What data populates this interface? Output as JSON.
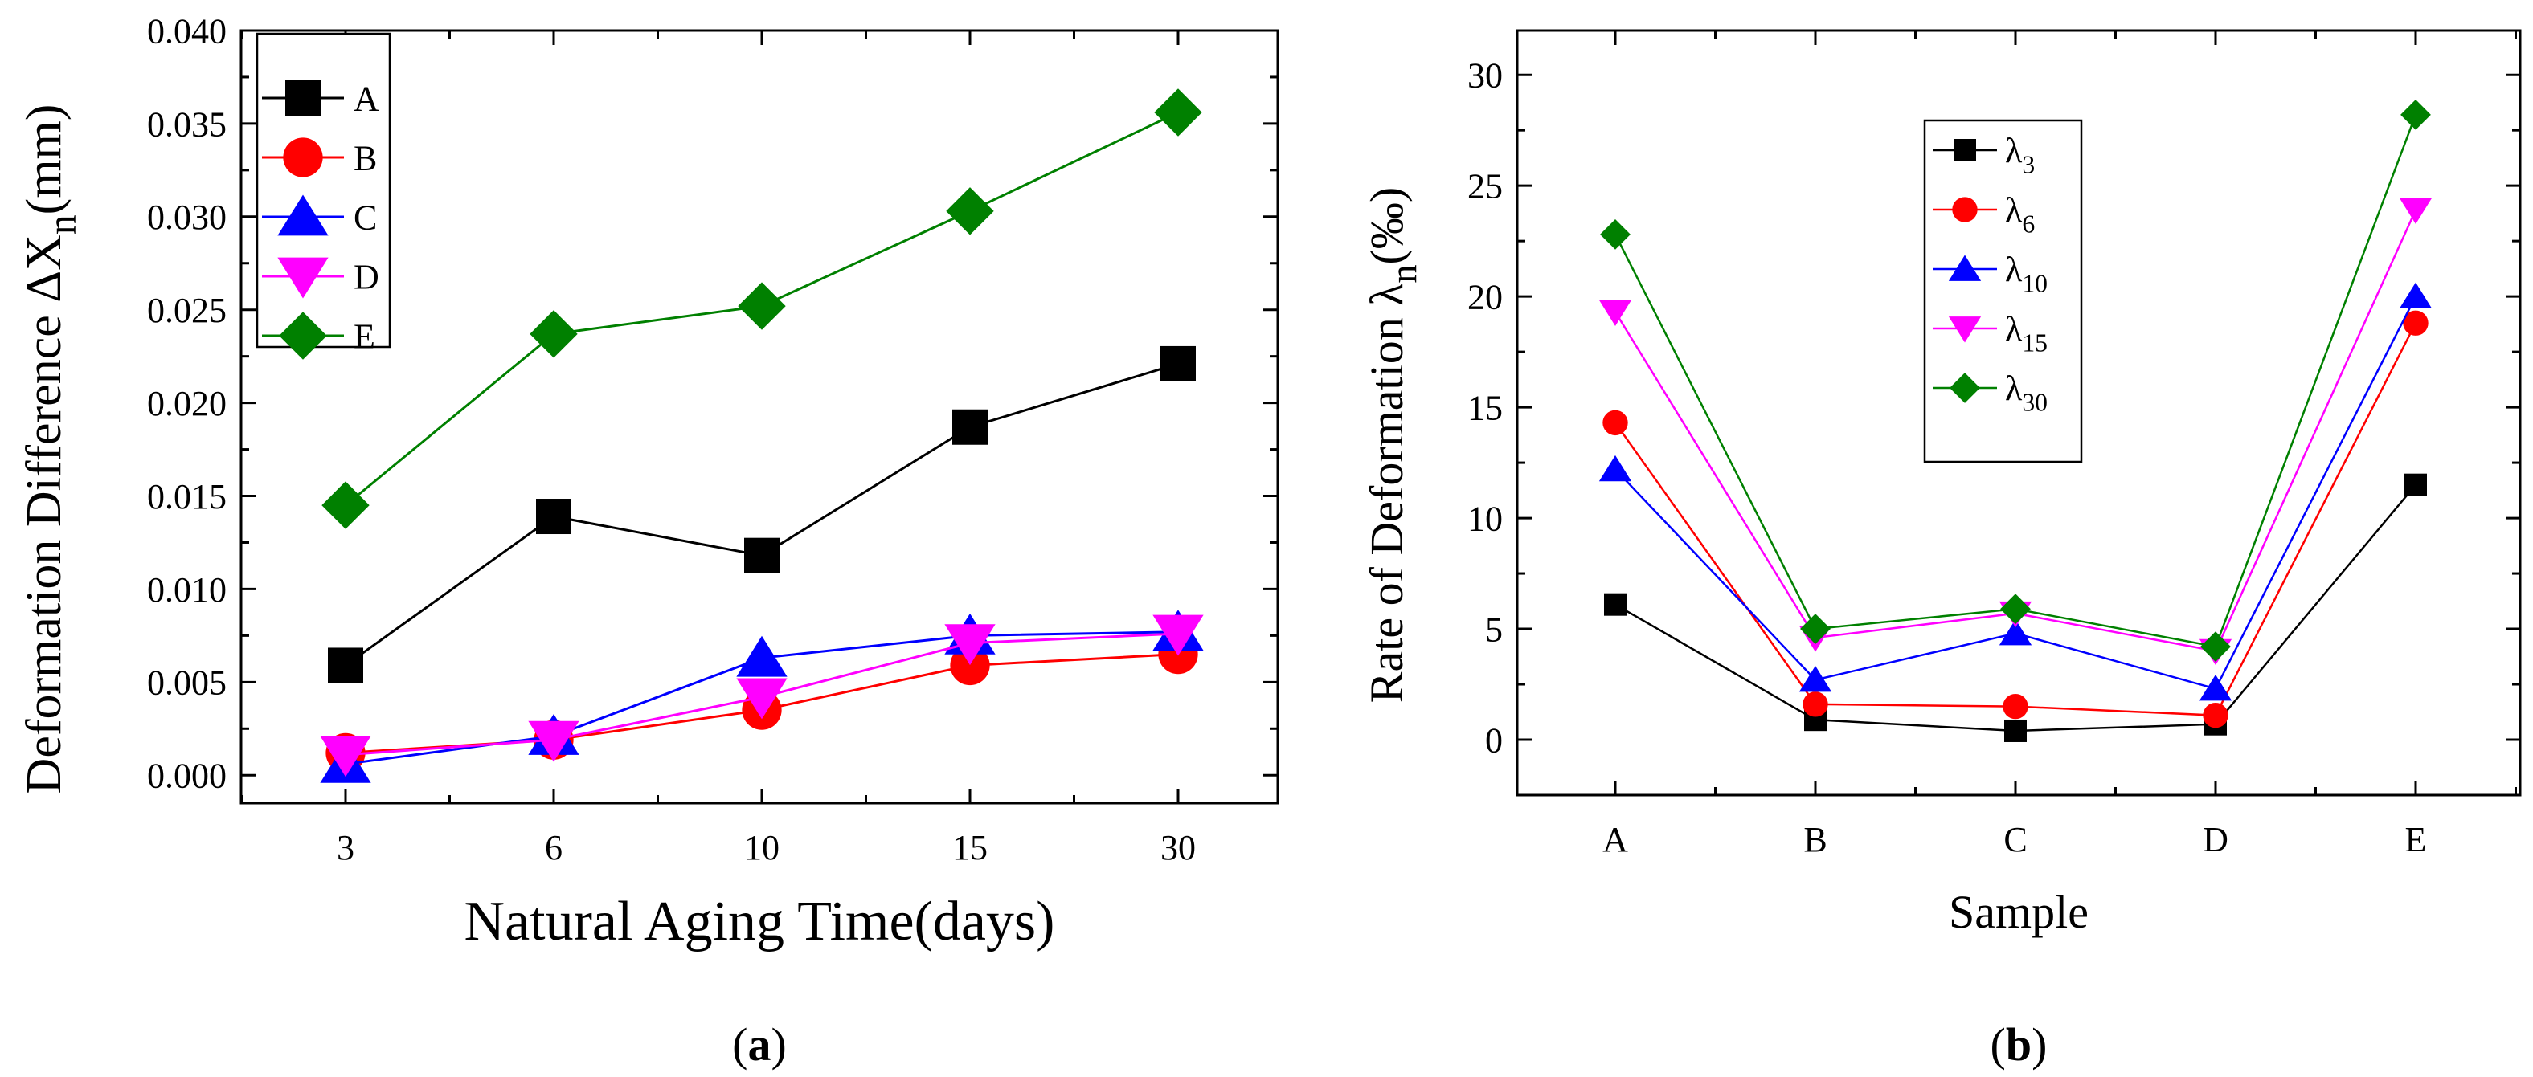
{
  "chart_data": [
    {
      "type": "line",
      "panel_label": "a",
      "title": "",
      "xlabel": "Natural Aging Time(days)",
      "ylabel": "Deformation Difference  ΔX",
      "ylabel_sub": "n",
      "ylabel_unit": "(mm)",
      "categories": [
        "3",
        "6",
        "10",
        "15",
        "30"
      ],
      "ylim": [
        -0.0015,
        0.04
      ],
      "yticks": [
        "0.000",
        "0.005",
        "0.010",
        "0.015",
        "0.020",
        "0.025",
        "0.030",
        "0.035",
        "0.040"
      ],
      "legend_position": "top-left",
      "grid": false,
      "series": [
        {
          "name": "A",
          "marker": "square",
          "color": "#000000",
          "values": [
            0.0059,
            0.0139,
            0.0118,
            0.0187,
            0.0221
          ]
        },
        {
          "name": "B",
          "marker": "circle",
          "color": "#ff0000",
          "values": [
            0.0012,
            0.0019,
            0.0035,
            0.0059,
            0.0065
          ]
        },
        {
          "name": "C",
          "marker": "triangle-up",
          "color": "#0000ff",
          "values": [
            0.0006,
            0.0021,
            0.0063,
            0.0075,
            0.0077
          ]
        },
        {
          "name": "D",
          "marker": "triangle-down",
          "color": "#ff00ff",
          "values": [
            0.0011,
            0.0019,
            0.0042,
            0.0071,
            0.0076
          ]
        },
        {
          "name": "E",
          "marker": "diamond",
          "color": "#008000",
          "values": [
            0.0145,
            0.0237,
            0.0252,
            0.0303,
            0.0356
          ]
        }
      ]
    },
    {
      "type": "line",
      "panel_label": "b",
      "title": "",
      "xlabel": "Sample",
      "ylabel": "Rate of Deformation λ",
      "ylabel_sub": "n",
      "ylabel_unit": "(‰)",
      "categories": [
        "A",
        "B",
        "C",
        "D",
        "E"
      ],
      "ylim": [
        -2.5,
        32
      ],
      "yticks": [
        "0",
        "5",
        "10",
        "15",
        "20",
        "25",
        "30"
      ],
      "legend_position": "top-center",
      "grid": false,
      "series": [
        {
          "name": "λ",
          "sub": "3",
          "marker": "square",
          "color": "#000000",
          "values": [
            6.1,
            0.9,
            0.4,
            0.7,
            11.5
          ]
        },
        {
          "name": "λ",
          "sub": "6",
          "marker": "circle",
          "color": "#ff0000",
          "values": [
            14.3,
            1.6,
            1.5,
            1.1,
            18.8
          ]
        },
        {
          "name": "λ",
          "sub": "10",
          "marker": "triangle-up",
          "color": "#0000ff",
          "values": [
            12.2,
            2.7,
            4.8,
            2.3,
            20.0
          ]
        },
        {
          "name": "λ",
          "sub": "15",
          "marker": "triangle-down",
          "color": "#ff00ff",
          "values": [
            19.3,
            4.6,
            5.7,
            4.0,
            23.9
          ]
        },
        {
          "name": "λ",
          "sub": "30",
          "marker": "diamond",
          "color": "#008000",
          "values": [
            22.8,
            5.0,
            5.9,
            4.2,
            28.2
          ]
        }
      ]
    }
  ]
}
